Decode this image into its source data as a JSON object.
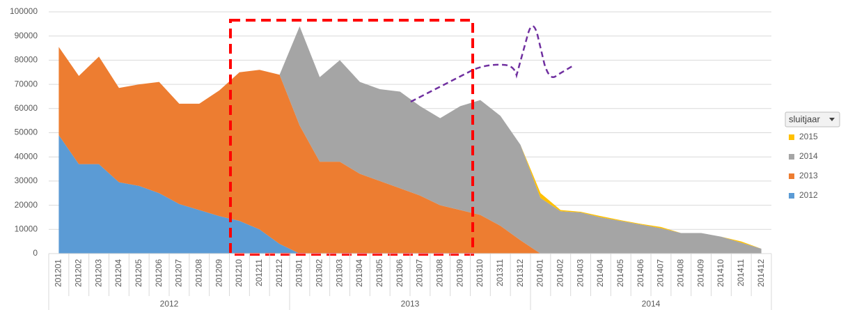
{
  "chart_data": {
    "type": "stacked_area",
    "categories": [
      "201201",
      "201202",
      "201203",
      "201204",
      "201205",
      "201206",
      "201207",
      "201208",
      "201209",
      "201210",
      "201211",
      "201212",
      "201301",
      "201302",
      "201303",
      "201304",
      "201305",
      "201306",
      "201307",
      "201308",
      "201309",
      "201310",
      "201311",
      "201312",
      "201401",
      "201402",
      "201403",
      "201404",
      "201405",
      "201406",
      "201407",
      "201408",
      "201409",
      "201410",
      "201411",
      "201412"
    ],
    "x_groups": [
      "2012",
      "2013",
      "2014"
    ],
    "series": [
      {
        "name": "2012",
        "color": "#5b9bd5",
        "values": [
          49000,
          37000,
          37000,
          29500,
          28000,
          25000,
          20500,
          18000,
          15500,
          13500,
          10000,
          4000,
          0,
          0,
          0,
          0,
          0,
          0,
          0,
          0,
          0,
          0,
          0,
          0,
          0,
          0,
          0,
          0,
          0,
          0,
          0,
          0,
          0,
          0,
          0,
          0
        ]
      },
      {
        "name": "2013",
        "color": "#ed7d31",
        "values": [
          36500,
          36500,
          44500,
          39000,
          42000,
          46000,
          41500,
          44000,
          52000,
          61500,
          66000,
          70000,
          53000,
          38000,
          38000,
          33000,
          30000,
          27000,
          24000,
          20000,
          18000,
          16000,
          11500,
          5500,
          0,
          0,
          0,
          0,
          0,
          0,
          0,
          0,
          0,
          0,
          0,
          0
        ]
      },
      {
        "name": "2014",
        "color": "#a5a5a5",
        "values": [
          0,
          0,
          0,
          0,
          0,
          0,
          0,
          0,
          0,
          0,
          0,
          0,
          41000,
          35000,
          42000,
          38000,
          38000,
          40000,
          37000,
          36000,
          43000,
          47500,
          45500,
          39500,
          23000,
          17500,
          17000,
          15000,
          13500,
          12000,
          10500,
          8500,
          8500,
          7000,
          4500,
          2000
        ]
      },
      {
        "name": "2015",
        "color": "#ffc000",
        "values": [
          0,
          0,
          0,
          0,
          0,
          0,
          0,
          0,
          0,
          0,
          0,
          0,
          0,
          0,
          0,
          0,
          0,
          0,
          0,
          0,
          0,
          0,
          0,
          0,
          2000,
          500,
          300,
          500,
          300,
          300,
          500,
          0,
          0,
          0,
          500,
          0
        ]
      }
    ],
    "legend_title": "sluitjaar",
    "ylim": [
      0,
      100000
    ],
    "yticks": [
      0,
      10000,
      20000,
      30000,
      40000,
      50000,
      60000,
      70000,
      80000,
      90000,
      100000
    ],
    "grid": true
  }
}
